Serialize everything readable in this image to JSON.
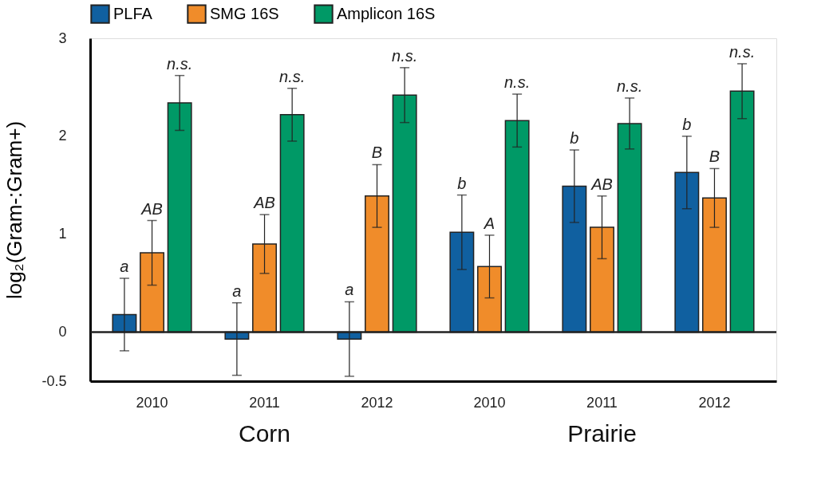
{
  "chart_data": {
    "type": "bar",
    "ylabel": "log₂(Gram-:Gram+)",
    "categories": [
      "2010",
      "2011",
      "2012",
      "2010",
      "2011",
      "2012"
    ],
    "series": [
      {
        "name": "PLFA",
        "color": "#1060a0",
        "values": [
          0.18,
          -0.07,
          -0.07,
          1.02,
          1.49,
          1.63
        ],
        "errors": [
          0.37,
          0.37,
          0.38,
          0.38,
          0.37,
          0.37
        ],
        "value_labels": [
          "a",
          "a",
          "a",
          "b",
          "b",
          "b"
        ]
      },
      {
        "name": "SMG 16S",
        "color": "#f08c2a",
        "values": [
          0.81,
          0.9,
          1.39,
          0.67,
          1.07,
          1.37
        ],
        "errors": [
          0.33,
          0.3,
          0.32,
          0.32,
          0.32,
          0.3
        ],
        "value_labels": [
          "AB",
          "AB",
          "B",
          "A",
          "AB",
          "B"
        ]
      },
      {
        "name": "Amplicon 16S",
        "color": "#009966",
        "values": [
          2.34,
          2.22,
          2.42,
          2.16,
          2.13,
          2.46
        ],
        "errors": [
          0.28,
          0.27,
          0.28,
          0.27,
          0.26,
          0.28
        ],
        "value_labels": [
          "n.s.",
          "n.s.",
          "n.s.",
          "n.s.",
          "n.s.",
          "n.s."
        ]
      }
    ],
    "ylim": [
      -0.5,
      3
    ],
    "yticks": [
      -0.5,
      0,
      1,
      2,
      3
    ],
    "ref_lines": [
      {
        "axis": "y",
        "value": 0
      }
    ],
    "annotations": [
      "Corn",
      "Prairie"
    ],
    "grid": false,
    "legend": "top"
  }
}
